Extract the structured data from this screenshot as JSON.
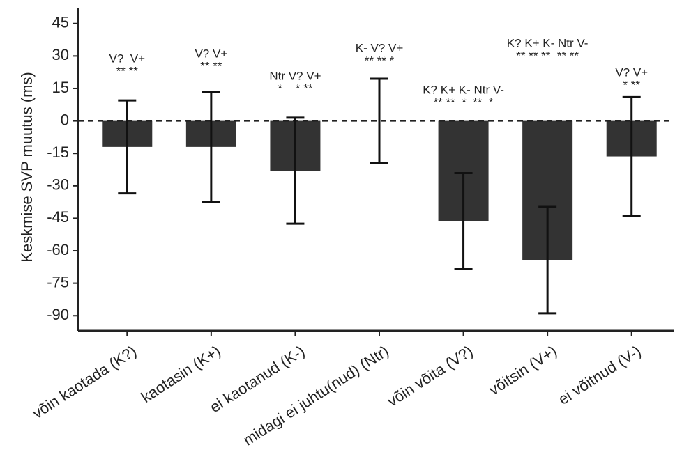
{
  "chart_data": {
    "type": "bar",
    "y_label": "Keskmise SVP muutus (ms)",
    "categories": [
      "võin kaotada (K?)",
      "kaotasin (K+)",
      "ei kaotanud (K-)",
      "midagi ei juhtu(nud) (Ntr)",
      "võin võita (V?)",
      "võitsin (V+)",
      "ei võitnud (V-)"
    ],
    "values": [
      -12,
      -12,
      -23,
      0,
      -46.3,
      -64.3,
      -16.4
    ],
    "errors": [
      21.5,
      25.5,
      24.5,
      19.5,
      22.2,
      24.6,
      27.4
    ],
    "annotations": [
      {
        "labels": "V?  V+",
        "stars": "** **"
      },
      {
        "labels": "V? V+",
        "stars": "** **"
      },
      {
        "labels": "Ntr V? V+",
        "stars": "*    * **"
      },
      {
        "labels": "K- V? V+",
        "stars": "** ** *"
      },
      {
        "labels": "K? K+ K- Ntr V-",
        "stars": "** **  *  **  *"
      },
      {
        "labels": "K? K+ K- Ntr V-",
        "stars": "** ** **  ** **"
      },
      {
        "labels": "V? V+",
        "stars": "* **"
      }
    ],
    "color": "#333333",
    "hline": 0,
    "ylim": [
      -97,
      52
    ],
    "yticks": [
      45,
      30,
      15,
      0,
      -15,
      -30,
      -45,
      -60,
      -75,
      -90
    ]
  }
}
